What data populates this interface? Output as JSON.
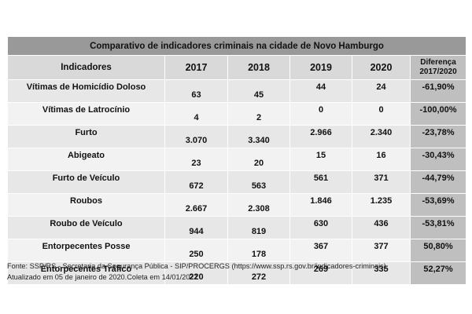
{
  "table": {
    "title": "Comparativo de indicadores criminais na cidade de Novo Hamburgo",
    "headers": {
      "indicator": "Indicadores",
      "y2017": "2017",
      "y2018": "2018",
      "y2019": "2019",
      "y2020": "2020",
      "diff_line1": "Diferença",
      "diff_line2": "2017/2020"
    },
    "rows": [
      {
        "name": "Vítimas de Homicídio Doloso",
        "v2017": "63",
        "v2018": "45",
        "v2019": "44",
        "v2020": "24",
        "diff": "-61,90%"
      },
      {
        "name": "Vítimas de Latrocínio",
        "v2017": "4",
        "v2018": "2",
        "v2019": "0",
        "v2020": "0",
        "diff": "-100,00%"
      },
      {
        "name": "Furto",
        "v2017": "3.070",
        "v2018": "3.340",
        "v2019": "2.966",
        "v2020": "2.340",
        "diff": "-23,78%"
      },
      {
        "name": "Abigeato",
        "v2017": "23",
        "v2018": "20",
        "v2019": "15",
        "v2020": "16",
        "diff": "-30,43%"
      },
      {
        "name": "Furto de Veículo",
        "v2017": "672",
        "v2018": "563",
        "v2019": "561",
        "v2020": "371",
        "diff": "-44,79%"
      },
      {
        "name": "Roubos",
        "v2017": "2.667",
        "v2018": "2.308",
        "v2019": "1.846",
        "v2020": "1.235",
        "diff": "-53,69%"
      },
      {
        "name": "Roubo de Veículo",
        "v2017": "944",
        "v2018": "819",
        "v2019": "630",
        "v2020": "436",
        "diff": "-53,81%"
      },
      {
        "name": "Entorpecentes Posse",
        "v2017": "250",
        "v2018": "178",
        "v2019": "367",
        "v2020": "377",
        "diff": "50,80%"
      },
      {
        "name": "Entorpecentes Tráfico",
        "v2017": "220",
        "v2018": "272",
        "v2019": "269",
        "v2020": "335",
        "diff": "52,27%"
      }
    ]
  },
  "notes": {
    "source": "Fonte: SSP/RS - Secretaria da Segurança Pública - SIP/PROCERGS (https://www.ssp.rs.gov.br/indicadores-criminais)",
    "updated": "Atualizado em 05 de janeiro de 2020.Coleta em 14/01/2021"
  },
  "colors": {
    "title_bg": "#999999",
    "header_bg": "#d9d9d9",
    "diff_bg": "#bfbfbf"
  }
}
